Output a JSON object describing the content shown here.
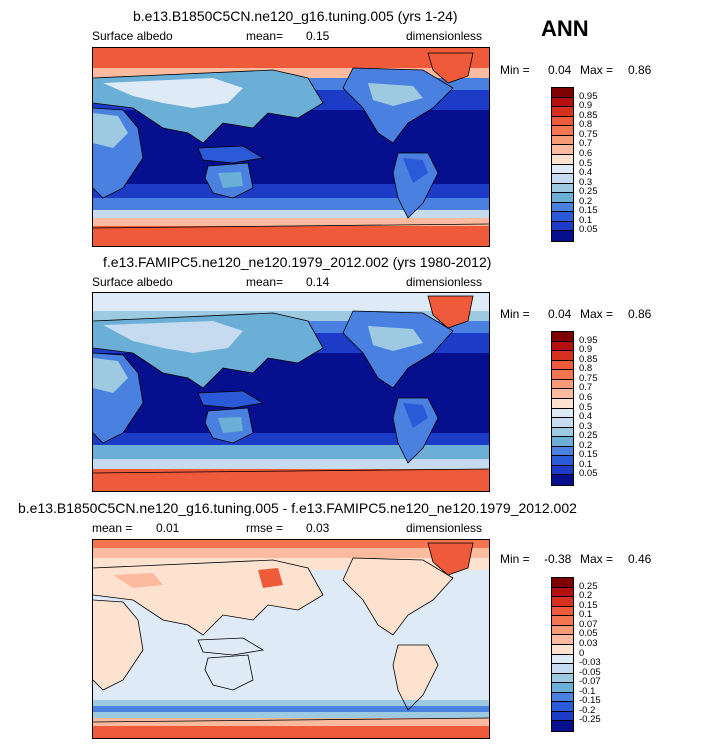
{
  "season": "ANN",
  "panels": [
    {
      "title": "b.e13.B1850C5CN.ne120_g16.tuning.005 (yrs 1-24)",
      "left_label": "Surface albedo",
      "mean_label": "mean=",
      "mean_value": "0.15",
      "units": "dimensionless",
      "min_label": "Min =",
      "min_value": "0.04",
      "max_label": "Max =",
      "max_value": "0.86",
      "kind": "abs",
      "levels": [
        "0.95",
        "0.9",
        "0.85",
        "0.8",
        "0.75",
        "0.7",
        "0.6",
        "0.5",
        "0.4",
        "0.3",
        "0.25",
        "0.2",
        "0.15",
        "0.1",
        "0.05"
      ]
    },
    {
      "title": "f.e13.FAMIPC5.ne120_ne120.1979_2012.002 (yrs 1980-2012)",
      "left_label": "Surface albedo",
      "mean_label": "mean=",
      "mean_value": "0.14",
      "units": "dimensionless",
      "min_label": "Min =",
      "min_value": "0.04",
      "max_label": "Max =",
      "max_value": "0.86",
      "kind": "abs",
      "levels": [
        "0.95",
        "0.9",
        "0.85",
        "0.8",
        "0.75",
        "0.7",
        "0.6",
        "0.5",
        "0.4",
        "0.3",
        "0.25",
        "0.2",
        "0.15",
        "0.1",
        "0.05"
      ]
    },
    {
      "title": "b.e13.B1850C5CN.ne120_g16.tuning.005 - f.e13.FAMIPC5.ne120_ne120.1979_2012.002",
      "left_label": "mean =",
      "mean_label": "rmse =",
      "mean_value": "0.03",
      "left_value": "0.01",
      "units": "dimensionless",
      "min_label": "Min =",
      "min_value": "-0.38",
      "max_label": "Max =",
      "max_value": "0.46",
      "kind": "diff",
      "levels": [
        "0.25",
        "0.2",
        "0.15",
        "0.1",
        "0.07",
        "0.05",
        "0.03",
        "0",
        "-0.03",
        "-0.05",
        "-0.07",
        "-0.1",
        "-0.15",
        "-0.2",
        "-0.25"
      ]
    }
  ],
  "colors": {
    "abs_palette": [
      "#7f0000",
      "#b50f0f",
      "#d7301f",
      "#ef5a3a",
      "#f4754f",
      "#f89a73",
      "#fcbb9e",
      "#fde2d0",
      "#deebf7",
      "#c6dbef",
      "#9ecae1",
      "#6baed6",
      "#4a80e0",
      "#2b5ad8",
      "#1c3cc8",
      "#06108f"
    ],
    "diff_palette": [
      "#7f0000",
      "#b50f0f",
      "#d7301f",
      "#ef5a3a",
      "#f4754f",
      "#f89a73",
      "#fcbb9e",
      "#fde2d0",
      "#deebf7",
      "#c6dbef",
      "#9ecae1",
      "#6baed6",
      "#4a80e0",
      "#2b5ad8",
      "#1c3cc8",
      "#06108f"
    ]
  }
}
